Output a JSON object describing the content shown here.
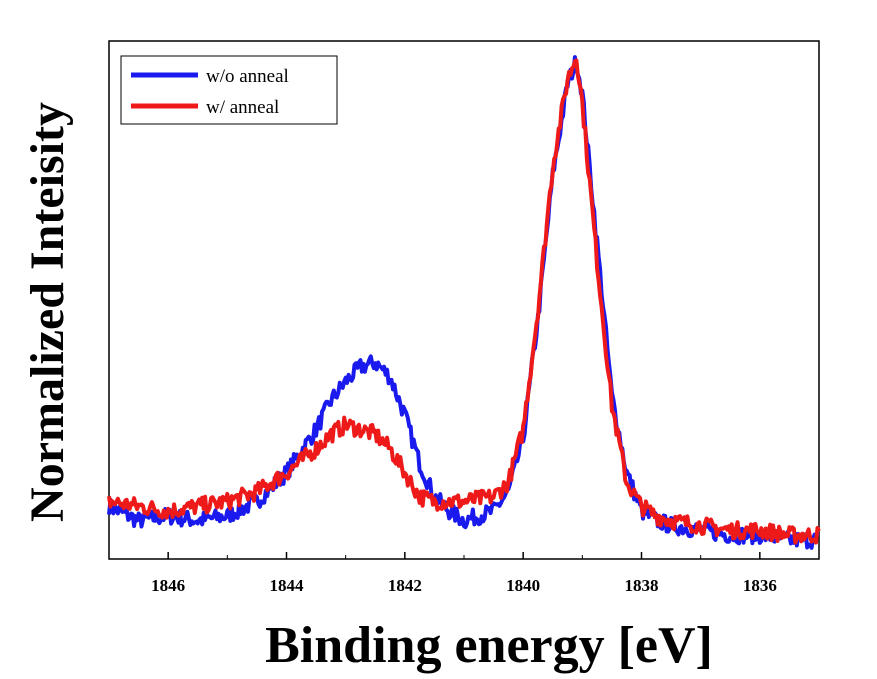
{
  "chart_data": {
    "type": "line",
    "xlabel": "Binding energy [eV]",
    "ylabel": "Normalized Inteisity",
    "xlim": [
      1847.0,
      1835.0
    ],
    "x_reversed": true,
    "ylim": [
      0.0,
      1.08
    ],
    "y_ticks_shown": false,
    "x_ticks": [
      1846,
      1844,
      1842,
      1840,
      1838,
      1836
    ],
    "x_tick_labels": [
      "1846",
      "1844",
      "1842",
      "1840",
      "1838",
      "1836"
    ],
    "grid": false,
    "legend_position": "top-left",
    "series": [
      {
        "name": "w/o anneal",
        "color": "#1a1aee",
        "x": [
          1847.0,
          1846.5,
          1846.0,
          1845.5,
          1845.0,
          1844.5,
          1844.0,
          1843.5,
          1843.25,
          1843.0,
          1842.75,
          1842.5,
          1842.25,
          1842.0,
          1841.75,
          1841.5,
          1841.25,
          1841.0,
          1840.5,
          1840.25,
          1840.0,
          1839.75,
          1839.5,
          1839.25,
          1839.1,
          1839.0,
          1838.75,
          1838.5,
          1838.25,
          1838.0,
          1837.75,
          1837.5,
          1837.0,
          1836.5,
          1836.0,
          1835.5,
          1835.0
        ],
        "values": [
          0.11,
          0.08,
          0.09,
          0.08,
          0.09,
          0.12,
          0.18,
          0.27,
          0.33,
          0.37,
          0.4,
          0.41,
          0.38,
          0.3,
          0.2,
          0.13,
          0.1,
          0.08,
          0.1,
          0.14,
          0.25,
          0.5,
          0.8,
          0.99,
          1.04,
          0.97,
          0.66,
          0.34,
          0.18,
          0.1,
          0.08,
          0.07,
          0.06,
          0.05,
          0.05,
          0.04,
          0.04
        ]
      },
      {
        "name": "w/ anneal",
        "color": "#ee1a1a",
        "x": [
          1847.0,
          1846.5,
          1846.0,
          1845.5,
          1845.0,
          1844.5,
          1844.0,
          1843.5,
          1843.25,
          1843.0,
          1842.75,
          1842.5,
          1842.25,
          1842.0,
          1841.75,
          1841.5,
          1841.25,
          1841.0,
          1840.5,
          1840.25,
          1840.0,
          1839.75,
          1839.5,
          1839.25,
          1839.1,
          1839.0,
          1838.75,
          1838.5,
          1838.25,
          1838.0,
          1837.75,
          1837.5,
          1837.0,
          1836.5,
          1836.0,
          1835.5,
          1835.0
        ],
        "values": [
          0.12,
          0.11,
          0.1,
          0.11,
          0.12,
          0.14,
          0.18,
          0.23,
          0.26,
          0.28,
          0.27,
          0.26,
          0.23,
          0.18,
          0.13,
          0.12,
          0.12,
          0.12,
          0.13,
          0.16,
          0.27,
          0.52,
          0.82,
          1.0,
          1.05,
          0.95,
          0.62,
          0.32,
          0.16,
          0.11,
          0.09,
          0.08,
          0.07,
          0.06,
          0.06,
          0.05,
          0.05
        ]
      }
    ]
  }
}
